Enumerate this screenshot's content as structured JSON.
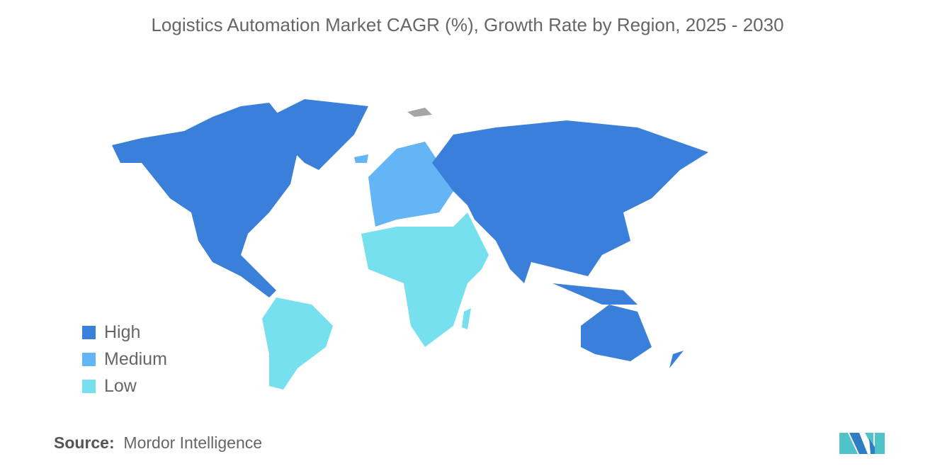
{
  "title": "Logistics Automation Market CAGR (%), Growth Rate by Region, 2025 - 2030",
  "legend": [
    {
      "label": "High",
      "color": "#3a7fd9"
    },
    {
      "label": "Medium",
      "color": "#64b5f6"
    },
    {
      "label": "Low",
      "color": "#76e0ee"
    }
  ],
  "no_data_color": "#a6a6a6",
  "regions": {
    "North America": "High",
    "Asia-Pacific": "High",
    "Europe": "Medium",
    "South America": "Low",
    "Middle East and Africa": "Low"
  },
  "source": {
    "label": "Source:",
    "value": "Mordor Intelligence"
  },
  "logo": "Mordor Intelligence"
}
